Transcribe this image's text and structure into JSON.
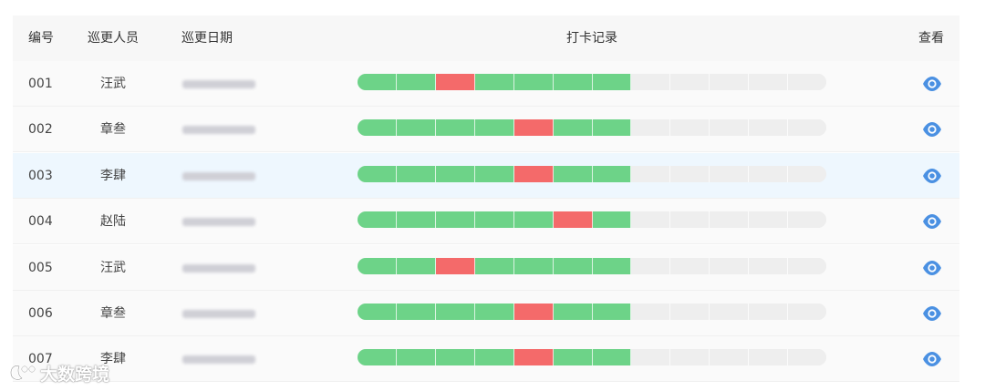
{
  "colors": {
    "present": "#6dd388",
    "missed": "#f46a6a",
    "empty": "#eeeeee",
    "eye_icon": "#4a90e2",
    "row_highlight": "#eef7fe"
  },
  "table": {
    "headers": {
      "no": "编号",
      "staff": "巡更人员",
      "date": "巡更日期",
      "record": "打卡记录",
      "view": "查看"
    },
    "rows": [
      {
        "no": "001",
        "staff": "汪武",
        "record": [
          "g",
          "g",
          "r",
          "g",
          "g",
          "g",
          "g",
          "e",
          "e",
          "e",
          "e",
          "e"
        ],
        "highlight": false
      },
      {
        "no": "002",
        "staff": "章叁",
        "record": [
          "g",
          "g",
          "g",
          "g",
          "r",
          "g",
          "g",
          "e",
          "e",
          "e",
          "e",
          "e"
        ],
        "highlight": false
      },
      {
        "no": "003",
        "staff": "李肆",
        "record": [
          "g",
          "g",
          "g",
          "g",
          "r",
          "g",
          "g",
          "e",
          "e",
          "e",
          "e",
          "e"
        ],
        "highlight": true
      },
      {
        "no": "004",
        "staff": "赵陆",
        "record": [
          "g",
          "g",
          "g",
          "g",
          "g",
          "r",
          "g",
          "e",
          "e",
          "e",
          "e",
          "e"
        ],
        "highlight": false
      },
      {
        "no": "005",
        "staff": "汪武",
        "record": [
          "g",
          "g",
          "r",
          "g",
          "g",
          "g",
          "g",
          "e",
          "e",
          "e",
          "e",
          "e"
        ],
        "highlight": false
      },
      {
        "no": "006",
        "staff": "章叁",
        "record": [
          "g",
          "g",
          "g",
          "g",
          "r",
          "g",
          "g",
          "e",
          "e",
          "e",
          "e",
          "e"
        ],
        "highlight": false
      },
      {
        "no": "007",
        "staff": "李肆",
        "record": [
          "g",
          "g",
          "g",
          "g",
          "r",
          "g",
          "g",
          "e",
          "e",
          "e",
          "e",
          "e"
        ],
        "highlight": false
      }
    ]
  },
  "row_icon": "eye-icon",
  "watermark": {
    "text": "大数跨境",
    "icon": "bubble-logo"
  }
}
